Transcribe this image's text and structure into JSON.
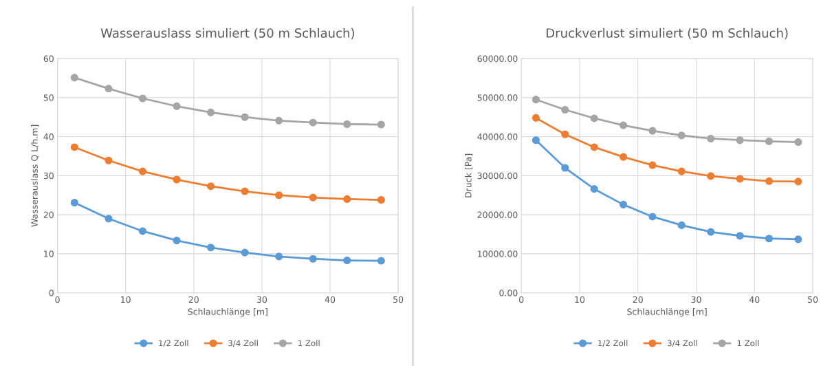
{
  "chart_data": [
    {
      "type": "line",
      "title": "Wasserauslass simuliert (50 m Schlauch)",
      "xlabel": "Schlauchlänge [m]",
      "ylabel": "Wasserauslass Q L/h.m]",
      "x": [
        2.5,
        7.5,
        12.5,
        17.5,
        22.5,
        27.5,
        32.5,
        37.5,
        42.5,
        47.5
      ],
      "series": [
        {
          "name": "1/2 Zoll",
          "color": "#5b9bd5",
          "values": [
            23.1,
            19.0,
            15.8,
            13.4,
            11.6,
            10.3,
            9.3,
            8.7,
            8.3,
            8.2
          ]
        },
        {
          "name": "3/4 Zoll",
          "color": "#ed7d31",
          "values": [
            37.3,
            33.9,
            31.1,
            29.0,
            27.3,
            26.0,
            25.0,
            24.4,
            24.0,
            23.8
          ]
        },
        {
          "name": "1 Zoll",
          "color": "#a5a5a5",
          "values": [
            55.1,
            52.3,
            49.8,
            47.8,
            46.2,
            45.0,
            44.1,
            43.6,
            43.2,
            43.1
          ]
        }
      ],
      "xlim": [
        0,
        50
      ],
      "xticks": [
        0,
        10,
        20,
        30,
        40,
        50
      ],
      "ylim": [
        0,
        60
      ],
      "yticks": [
        0,
        10,
        20,
        30,
        40,
        50,
        60
      ],
      "grid": true,
      "legend": "bottom",
      "marker": "circle",
      "line_style": "solid"
    },
    {
      "type": "line",
      "title": "Druckverlust simuliert (50 m Schlauch)",
      "xlabel": "Schlauchlänge [m]",
      "ylabel": "Druck [Pa]",
      "x": [
        2.5,
        7.5,
        12.5,
        17.5,
        22.5,
        27.5,
        32.5,
        37.5,
        42.5,
        47.5
      ],
      "series": [
        {
          "name": "1/2 Zoll",
          "color": "#5b9bd5",
          "values": [
            39100,
            32000,
            26600,
            22600,
            19500,
            17300,
            15600,
            14600,
            13900,
            13700
          ]
        },
        {
          "name": "3/4 Zoll",
          "color": "#ed7d31",
          "values": [
            44800,
            40600,
            37300,
            34800,
            32700,
            31100,
            29900,
            29200,
            28600,
            28500
          ]
        },
        {
          "name": "1 Zoll",
          "color": "#a5a5a5",
          "values": [
            49500,
            46900,
            44700,
            42900,
            41500,
            40300,
            39500,
            39100,
            38800,
            38600
          ]
        }
      ],
      "xlim": [
        0,
        50
      ],
      "xticks": [
        0,
        10,
        20,
        30,
        40,
        50
      ],
      "ylim": [
        0,
        60000
      ],
      "yticks": [
        {
          "value": 0,
          "label": "0.00"
        },
        {
          "value": 10000,
          "label": "10000.00"
        },
        {
          "value": 20000,
          "label": "20000.00"
        },
        {
          "value": 30000,
          "label": "30000.00"
        },
        {
          "value": 40000,
          "label": "40000.00"
        },
        {
          "value": 50000,
          "label": "50000.00"
        },
        {
          "value": 60000,
          "label": "60000.00"
        }
      ],
      "grid": true,
      "legend": "bottom",
      "marker": "circle",
      "line_style": "solid"
    }
  ]
}
